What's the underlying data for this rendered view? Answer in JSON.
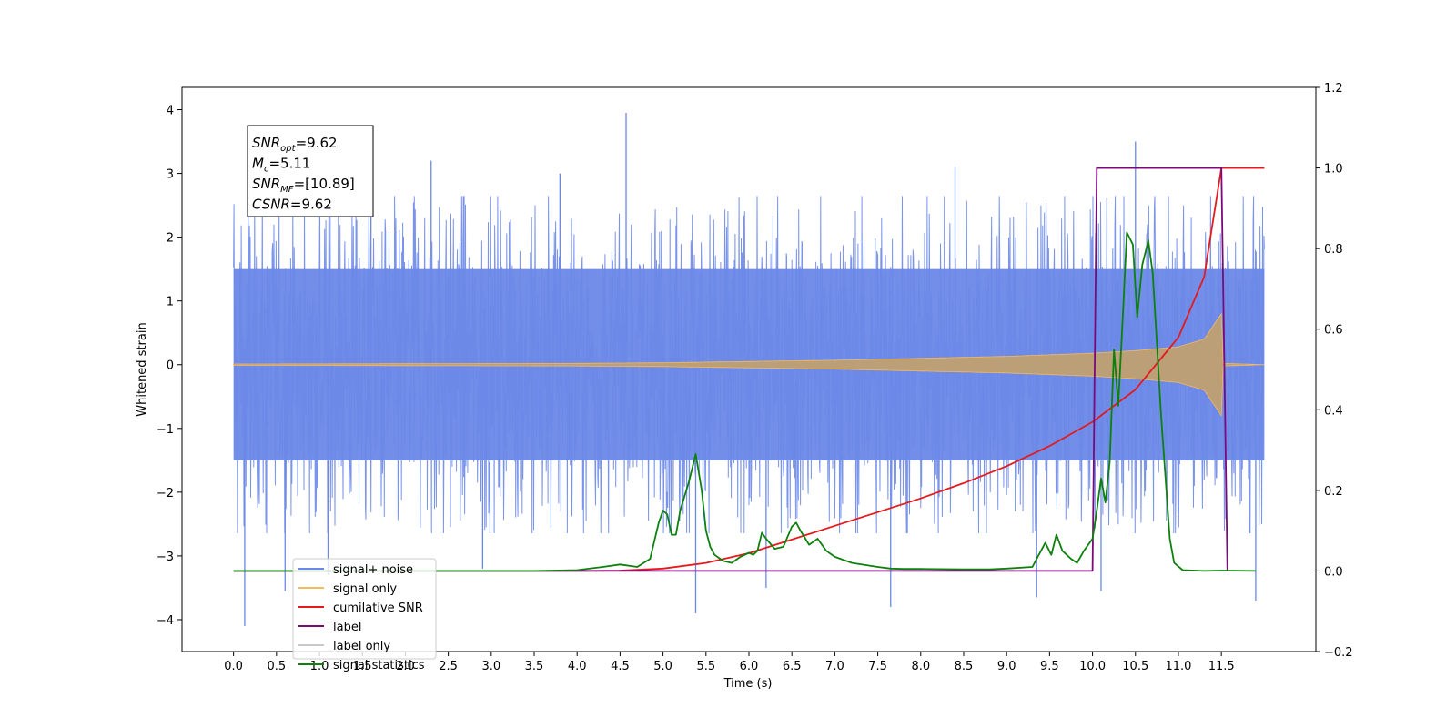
{
  "chart_data": {
    "type": "line",
    "xlabel": "Time (s)",
    "ylabel": "Whitened strain",
    "ylabel_right": "",
    "xlim": [
      -0.6,
      12.6
    ],
    "ylim": [
      -4.5,
      4.35
    ],
    "ylim_right": [
      -0.2,
      1.2
    ],
    "x_ticks": [
      0.0,
      0.5,
      1.0,
      1.5,
      2.0,
      2.5,
      3.0,
      3.5,
      4.0,
      4.5,
      5.0,
      5.5,
      6.0,
      6.5,
      7.0,
      7.5,
      8.0,
      8.5,
      9.0,
      9.5,
      10.0,
      10.5,
      11.0,
      11.5
    ],
    "x_tick_labels": [
      "0.0",
      "0.5",
      "1.0",
      "1.5",
      "2.0",
      "2.5",
      "3.0",
      "3.5",
      "4.0",
      "4.5",
      "5.0",
      "5.5",
      "6.0",
      "6.5",
      "7.0",
      "7.5",
      "8.0",
      "8.5",
      "9.0",
      "9.5",
      "10.0",
      "10.5",
      "11.0",
      "11.5"
    ],
    "y_ticks": [
      -4,
      -3,
      -2,
      -1,
      0,
      1,
      2,
      3,
      4
    ],
    "y_tick_labels": [
      "−4",
      "−3",
      "−2",
      "−1",
      "0",
      "1",
      "2",
      "3",
      "4"
    ],
    "y_right_ticks": [
      -0.2,
      0.0,
      0.2,
      0.4,
      0.6,
      0.8,
      1.0,
      1.2
    ],
    "y_right_tick_labels": [
      "−0.2",
      "0.0",
      "0.2",
      "0.4",
      "0.6",
      "0.8",
      "1.0",
      "1.2"
    ],
    "grid": false,
    "legend_position": "lower-left",
    "stats_box": {
      "lines": [
        {
          "sym": "SNR",
          "sub": "opt",
          "rest": "=9.62"
        },
        {
          "sym": "M",
          "sub": "c",
          "rest": "=5.11"
        },
        {
          "sym": "SNR",
          "sub": "MF",
          "rest": "=[10.89]"
        },
        {
          "sym": "CSNR",
          "sub": "",
          "rest": "=9.62"
        }
      ]
    },
    "noise_envelope": {
      "t": [
        0.0,
        1.0,
        2.0,
        3.0,
        4.0,
        5.0,
        6.0,
        7.0,
        8.0,
        9.0,
        10.0,
        11.0,
        11.5,
        12.0
      ],
      "upper_typical": [
        2.3,
        2.3,
        2.3,
        2.3,
        2.3,
        2.3,
        2.3,
        2.3,
        2.3,
        2.3,
        2.3,
        2.3,
        2.3,
        2.3
      ],
      "lower_typical": [
        -2.3,
        -2.3,
        -2.3,
        -2.3,
        -2.3,
        -2.3,
        -2.3,
        -2.3,
        -2.3,
        -2.3,
        -2.3,
        -2.3,
        -2.3,
        -2.3
      ],
      "core": 1.5
    },
    "noise_spikes": [
      {
        "t": 0.13,
        "v": -4.1
      },
      {
        "t": 0.6,
        "v": -3.55
      },
      {
        "t": 1.6,
        "v": 3.3
      },
      {
        "t": 2.3,
        "v": 3.2
      },
      {
        "t": 4.57,
        "v": 3.95
      },
      {
        "t": 5.38,
        "v": -3.9
      },
      {
        "t": 6.2,
        "v": -3.5
      },
      {
        "t": 7.65,
        "v": -3.8
      },
      {
        "t": 9.35,
        "v": -3.65
      },
      {
        "t": 10.1,
        "v": -3.55
      },
      {
        "t": 10.5,
        "v": 3.5
      },
      {
        "t": 11.9,
        "v": -3.7
      },
      {
        "t": 2.9,
        "v": -3.2
      },
      {
        "t": 3.8,
        "v": 3.0
      },
      {
        "t": 8.4,
        "v": 3.1
      },
      {
        "t": 1.1,
        "v": -3.3
      }
    ],
    "signal_envelope": {
      "t": [
        0.0,
        2.0,
        4.0,
        5.0,
        6.0,
        7.0,
        8.0,
        9.0,
        10.0,
        10.5,
        11.0,
        11.3,
        11.45,
        11.5,
        11.52,
        12.0
      ],
      "amp": [
        0.01,
        0.015,
        0.02,
        0.03,
        0.05,
        0.07,
        0.1,
        0.13,
        0.18,
        0.22,
        0.28,
        0.4,
        0.7,
        0.8,
        0.02,
        0.0
      ]
    },
    "series": [
      {
        "name": "signal+ noise",
        "color": "#6b88e8",
        "axis": "left"
      },
      {
        "name": "signal only",
        "color": "#f5b95e",
        "axis": "left"
      },
      {
        "name": "cumilative SNR",
        "color": "#e41a1c",
        "axis": "right",
        "x": [
          0.0,
          4.0,
          4.5,
          5.0,
          5.5,
          6.0,
          6.5,
          7.0,
          7.5,
          8.0,
          8.5,
          9.0,
          9.5,
          10.0,
          10.5,
          11.0,
          11.3,
          11.5,
          12.0
        ],
        "y": [
          0.0,
          0.0,
          0.001,
          0.006,
          0.02,
          0.044,
          0.078,
          0.112,
          0.146,
          0.18,
          0.218,
          0.26,
          0.31,
          0.37,
          0.45,
          0.58,
          0.73,
          1.0,
          1.0
        ]
      },
      {
        "name": "label",
        "color": "#7a0a7a",
        "axis": "right",
        "x": [
          0.0,
          10.0,
          10.05,
          11.5,
          11.57
        ],
        "y": [
          0.0,
          0.0,
          1.0,
          1.0,
          0.0
        ]
      },
      {
        "name": "label only",
        "color": "#c8c8c8",
        "axis": "right"
      },
      {
        "name": "signal statistics",
        "color": "#0d800d",
        "axis": "right",
        "x": [
          0.0,
          2.0,
          3.0,
          3.5,
          4.0,
          4.3,
          4.5,
          4.7,
          4.85,
          4.95,
          5.0,
          5.05,
          5.1,
          5.15,
          5.2,
          5.3,
          5.38,
          5.45,
          5.5,
          5.55,
          5.6,
          5.7,
          5.8,
          5.9,
          6.0,
          6.05,
          6.1,
          6.15,
          6.2,
          6.3,
          6.4,
          6.5,
          6.55,
          6.6,
          6.7,
          6.8,
          6.9,
          7.0,
          7.2,
          7.5,
          7.65,
          7.8,
          8.0,
          8.5,
          8.8,
          9.0,
          9.3,
          9.45,
          9.52,
          9.58,
          9.65,
          9.75,
          9.82,
          9.9,
          10.0,
          10.05,
          10.1,
          10.15,
          10.2,
          10.25,
          10.3,
          10.35,
          10.4,
          10.47,
          10.52,
          10.58,
          10.65,
          10.7,
          10.8,
          10.9,
          10.95,
          11.05,
          11.3,
          11.5,
          11.9
        ],
        "y": [
          0.0,
          0.0,
          0.0,
          0.0,
          0.002,
          0.01,
          0.016,
          0.01,
          0.03,
          0.12,
          0.15,
          0.14,
          0.09,
          0.09,
          0.15,
          0.22,
          0.29,
          0.2,
          0.1,
          0.06,
          0.04,
          0.025,
          0.02,
          0.035,
          0.045,
          0.04,
          0.05,
          0.095,
          0.08,
          0.055,
          0.06,
          0.11,
          0.12,
          0.1,
          0.065,
          0.08,
          0.05,
          0.035,
          0.02,
          0.01,
          0.006,
          0.005,
          0.005,
          0.004,
          0.004,
          0.006,
          0.01,
          0.07,
          0.04,
          0.09,
          0.05,
          0.03,
          0.02,
          0.05,
          0.08,
          0.15,
          0.23,
          0.17,
          0.27,
          0.55,
          0.41,
          0.62,
          0.84,
          0.81,
          0.63,
          0.76,
          0.82,
          0.74,
          0.38,
          0.08,
          0.02,
          0.002,
          0.0,
          0.001,
          0.0
        ]
      }
    ]
  }
}
